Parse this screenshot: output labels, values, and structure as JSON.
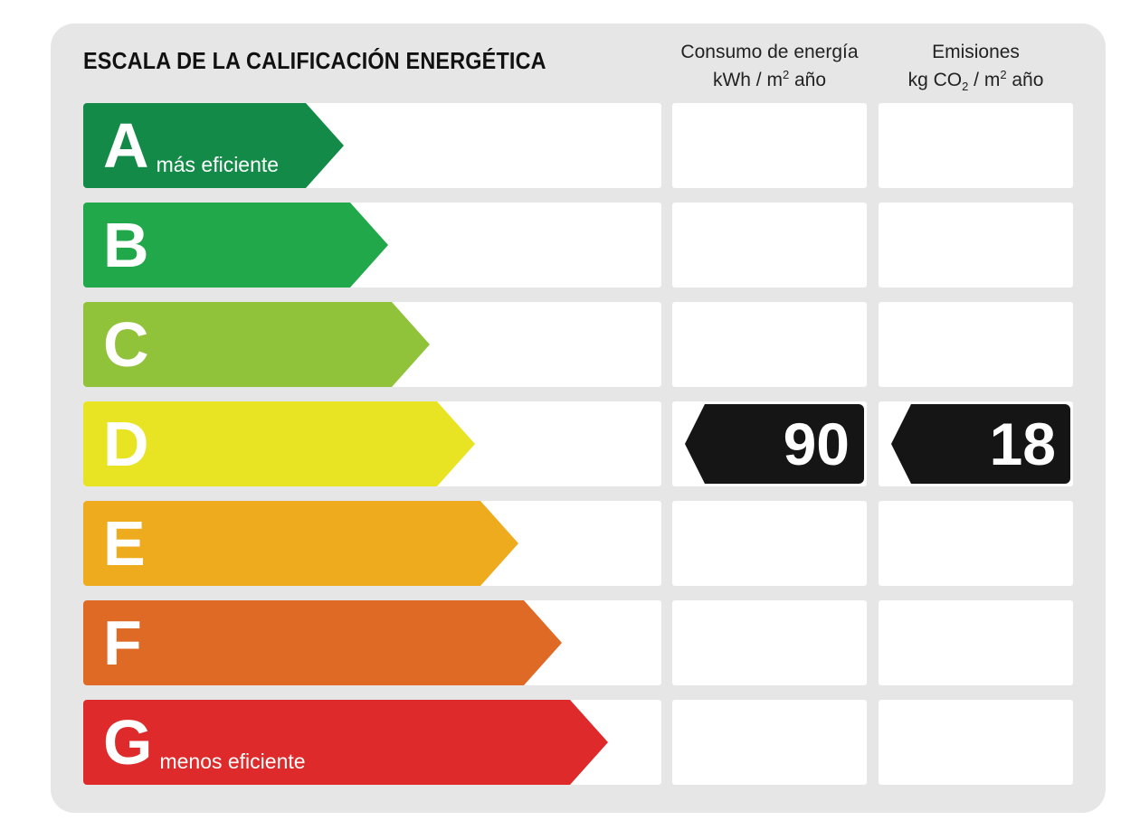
{
  "title": "ESCALA DE LA CALIFICACIÓN ENERGÉTICA",
  "columns": {
    "consumption": {
      "line1": "Consumo de energía",
      "unit_prefix": "kWh / m",
      "unit_exp": "2",
      "unit_suffix": " año"
    },
    "emissions": {
      "line1": "Emisiones",
      "unit_prefix": "kg CO",
      "unit_sub": "2",
      "unit_mid": " / m",
      "unit_exp": "2",
      "unit_suffix": " año"
    }
  },
  "classes": [
    {
      "letter": "A",
      "label": "más eficiente",
      "color": "#138a47"
    },
    {
      "letter": "B",
      "label": "",
      "color": "#21a84a"
    },
    {
      "letter": "C",
      "label": "",
      "color": "#90c23a"
    },
    {
      "letter": "D",
      "label": "",
      "color": "#e8e323"
    },
    {
      "letter": "E",
      "label": "",
      "color": "#edab1d"
    },
    {
      "letter": "F",
      "label": "",
      "color": "#df6a26"
    },
    {
      "letter": "G",
      "label": "menos eficiente",
      "color": "#de2a2a"
    }
  ],
  "rating": {
    "class": "D",
    "consumption_value": "90",
    "emissions_value": "18",
    "badge_color": "#151515"
  }
}
